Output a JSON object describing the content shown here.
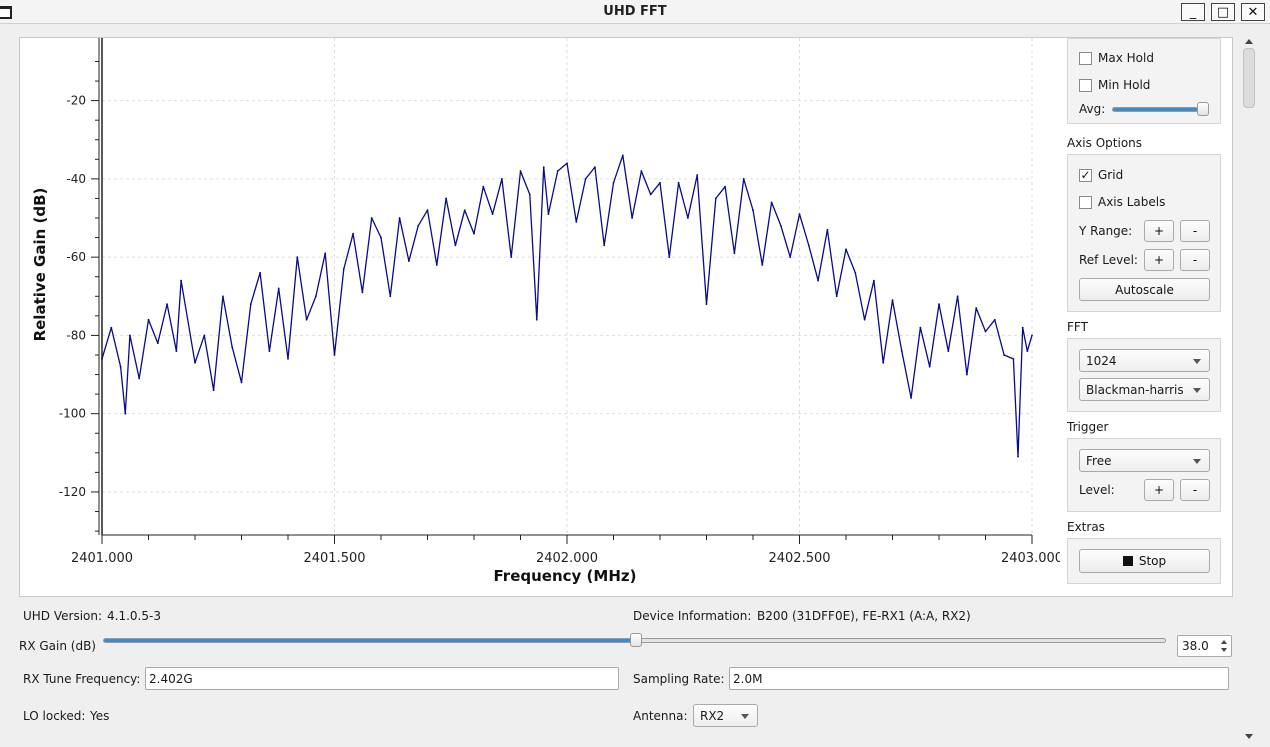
{
  "window": {
    "title": "UHD FFT",
    "controls": {
      "minimize": "_",
      "maximize": "□",
      "close": "✕"
    }
  },
  "chart_data": {
    "type": "line",
    "xlabel": "Frequency (MHz)",
    "ylabel": "Relative Gain (dB)",
    "xlim": [
      2401.0,
      2403.0
    ],
    "ylim": [
      -131,
      -4
    ],
    "x_tick_labels": [
      "2401.000",
      "2401.500",
      "2402.000",
      "2402.500",
      "2403.000"
    ],
    "x_ticks": [
      2401.0,
      2401.5,
      2402.0,
      2402.5,
      2403.0
    ],
    "y_ticks": [
      -20,
      -40,
      -60,
      -80,
      -100,
      -120
    ],
    "y_tick_labels": [
      "-20",
      "-40",
      "-60",
      "-80",
      "-100",
      "-120"
    ],
    "grid": true,
    "series": [
      {
        "color": "#0a0a8c",
        "x": [
          2401.0,
          2401.02,
          2401.04,
          2401.05,
          2401.06,
          2401.08,
          2401.1,
          2401.12,
          2401.14,
          2401.16,
          2401.17,
          2401.2,
          2401.22,
          2401.24,
          2401.26,
          2401.28,
          2401.3,
          2401.32,
          2401.34,
          2401.36,
          2401.38,
          2401.4,
          2401.42,
          2401.44,
          2401.46,
          2401.48,
          2401.5,
          2401.52,
          2401.54,
          2401.56,
          2401.58,
          2401.6,
          2401.62,
          2401.64,
          2401.66,
          2401.68,
          2401.7,
          2401.72,
          2401.74,
          2401.76,
          2401.78,
          2401.8,
          2401.82,
          2401.84,
          2401.86,
          2401.88,
          2401.9,
          2401.92,
          2401.935,
          2401.95,
          2401.96,
          2401.98,
          2402.0,
          2402.02,
          2402.04,
          2402.06,
          2402.08,
          2402.1,
          2402.12,
          2402.14,
          2402.16,
          2402.18,
          2402.2,
          2402.22,
          2402.24,
          2402.26,
          2402.28,
          2402.3,
          2402.32,
          2402.34,
          2402.36,
          2402.38,
          2402.4,
          2402.42,
          2402.44,
          2402.46,
          2402.48,
          2402.5,
          2402.52,
          2402.54,
          2402.56,
          2402.58,
          2402.6,
          2402.62,
          2402.64,
          2402.66,
          2402.68,
          2402.7,
          2402.72,
          2402.74,
          2402.76,
          2402.78,
          2402.8,
          2402.82,
          2402.84,
          2402.86,
          2402.88,
          2402.9,
          2402.92,
          2402.94,
          2402.96,
          2402.97,
          2402.98,
          2402.99,
          2403.0
        ],
        "y": [
          -86,
          -78,
          -88,
          -100,
          -80,
          -91,
          -76,
          -82,
          -72,
          -84,
          -66,
          -87,
          -80,
          -94,
          -70,
          -83,
          -92,
          -72,
          -64,
          -84,
          -68,
          -86,
          -60,
          -76,
          -70,
          -59,
          -85,
          -63,
          -54,
          -69,
          -50,
          -55,
          -70,
          -50,
          -61,
          -52,
          -48,
          -62,
          -45,
          -57,
          -48,
          -54,
          -42,
          -49,
          -40,
          -60,
          -38,
          -44,
          -76,
          -37,
          -49,
          -38,
          -36,
          -51,
          -40,
          -37,
          -57,
          -41,
          -34,
          -50,
          -38,
          -44,
          -41,
          -60,
          -41,
          -50,
          -39,
          -72,
          -45,
          -42,
          -59,
          -40,
          -48,
          -62,
          -46,
          -52,
          -60,
          -49,
          -57,
          -66,
          -53,
          -70,
          -58,
          -64,
          -76,
          -66,
          -87,
          -71,
          -84,
          -96,
          -78,
          -88,
          -72,
          -84,
          -70,
          -90,
          -73,
          -79,
          -76,
          -85,
          -86,
          -111,
          -78,
          -84,
          -80
        ]
      }
    ]
  },
  "side_panel": {
    "max_hold": {
      "label": "Max Hold",
      "checked": false
    },
    "min_hold": {
      "label": "Min Hold",
      "checked": false
    },
    "avg": {
      "label": "Avg:",
      "value": 1.0
    },
    "axis_options": {
      "title": "Axis Options",
      "grid": {
        "label": "Grid",
        "checked": true,
        "mark": "✓"
      },
      "axis_labels": {
        "label": "Axis Labels",
        "checked": false
      },
      "y_range": "Y Range:",
      "ref_level": "Ref Level:",
      "plus": "+",
      "minus": "-",
      "autoscale": "Autoscale"
    },
    "fft": {
      "title": "FFT",
      "size": "1024",
      "window": "Blackman-harris"
    },
    "trigger": {
      "title": "Trigger",
      "mode": "Free",
      "level": "Level:",
      "plus": "+",
      "minus": "-"
    },
    "extras": {
      "title": "Extras",
      "stop": "Stop"
    }
  },
  "bottom": {
    "uhd_version_label": "UHD Version:",
    "uhd_version": "4.1.0.5-3",
    "device_info_label": "Device Information:",
    "device_info": "B200 (31DFF0E), FE-RX1 (A:A, RX2)",
    "rx_gain_label": "RX Gain (dB)",
    "rx_gain_value": "38.0",
    "rx_gain_fraction": 0.5,
    "rx_tune_label": "RX Tune Frequency:",
    "rx_tune_value": "2.402G",
    "sampling_rate_label": "Sampling Rate:",
    "sampling_rate_value": "2.0M",
    "lo_locked_label": "LO locked:",
    "lo_locked_value": "Yes",
    "antenna_label": "Antenna:",
    "antenna_value": "RX2"
  }
}
